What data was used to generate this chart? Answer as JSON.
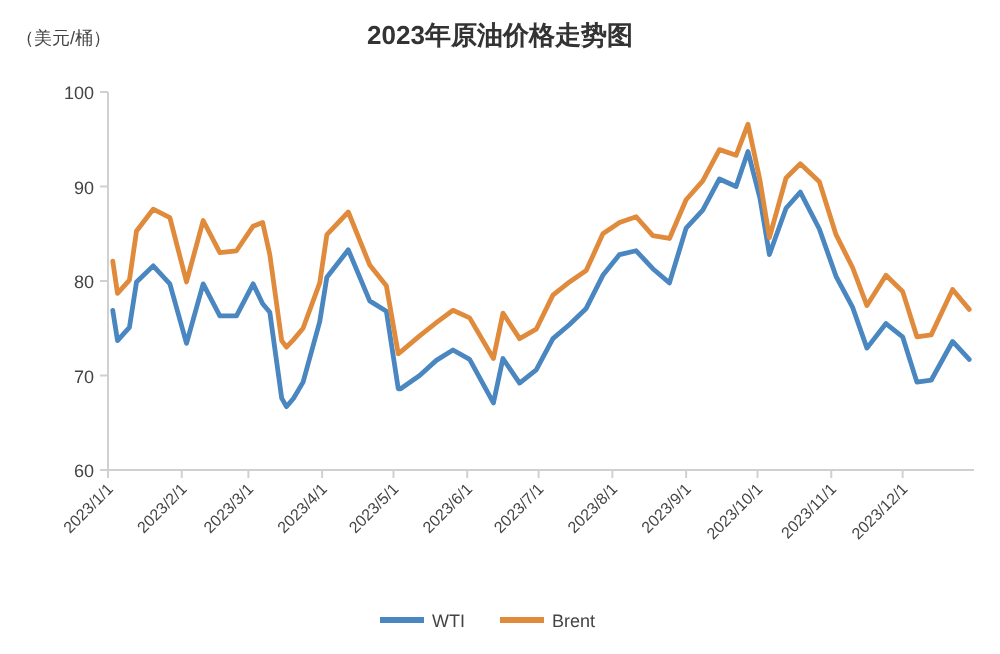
{
  "chart_data": {
    "type": "line",
    "title": "2023年原油价格走势图",
    "ylabel": "（美元/桶）",
    "x": [
      "2023-01-03",
      "2023-01-05",
      "2023-01-10",
      "2023-01-13",
      "2023-01-20",
      "2023-01-27",
      "2023-02-03",
      "2023-02-10",
      "2023-02-17",
      "2023-02-24",
      "2023-03-03",
      "2023-03-07",
      "2023-03-10",
      "2023-03-15",
      "2023-03-17",
      "2023-03-20",
      "2023-03-24",
      "2023-03-31",
      "2023-04-03",
      "2023-04-12",
      "2023-04-21",
      "2023-04-28",
      "2023-05-03",
      "2023-05-04",
      "2023-05-12",
      "2023-05-19",
      "2023-05-26",
      "2023-06-02",
      "2023-06-12",
      "2023-06-16",
      "2023-06-23",
      "2023-06-30",
      "2023-07-07",
      "2023-07-14",
      "2023-07-21",
      "2023-07-28",
      "2023-08-04",
      "2023-08-11",
      "2023-08-18",
      "2023-08-25",
      "2023-09-01",
      "2023-09-08",
      "2023-09-15",
      "2023-09-22",
      "2023-09-27",
      "2023-10-02",
      "2023-10-06",
      "2023-10-13",
      "2023-10-19",
      "2023-10-27",
      "2023-11-03",
      "2023-11-10",
      "2023-11-16",
      "2023-11-24",
      "2023-12-01",
      "2023-12-07",
      "2023-12-13",
      "2023-12-22",
      "2023-12-29"
    ],
    "series": [
      {
        "name": "WTI",
        "color": "#4a86c0",
        "values": [
          76.9,
          73.7,
          75.1,
          79.9,
          81.6,
          79.7,
          73.4,
          79.7,
          76.3,
          76.3,
          79.7,
          77.6,
          76.7,
          67.6,
          66.7,
          67.6,
          69.3,
          75.7,
          80.4,
          83.3,
          77.9,
          76.8,
          68.6,
          68.6,
          70.0,
          71.6,
          72.7,
          71.7,
          67.1,
          71.8,
          69.2,
          70.6,
          73.9,
          75.4,
          77.1,
          80.6,
          82.8,
          83.2,
          81.3,
          79.8,
          85.6,
          87.5,
          90.8,
          90.0,
          93.7,
          88.8,
          82.8,
          87.7,
          89.4,
          85.5,
          80.5,
          77.2,
          72.9,
          75.5,
          74.1,
          69.3,
          69.5,
          73.6,
          71.7
        ]
      },
      {
        "name": "Brent",
        "color": "#e08a3c",
        "values": [
          82.1,
          78.7,
          80.1,
          85.3,
          87.6,
          86.7,
          79.9,
          86.4,
          83.0,
          83.2,
          85.8,
          86.2,
          82.8,
          73.7,
          73.0,
          73.8,
          75.0,
          79.8,
          84.9,
          87.3,
          81.7,
          79.5,
          72.3,
          72.5,
          74.2,
          75.6,
          76.9,
          76.1,
          71.8,
          76.6,
          73.9,
          74.9,
          78.5,
          79.9,
          81.1,
          85.0,
          86.2,
          86.8,
          84.8,
          84.5,
          88.6,
          90.6,
          93.9,
          93.3,
          96.6,
          90.7,
          84.6,
          90.9,
          92.4,
          90.5,
          84.9,
          81.4,
          77.4,
          80.6,
          78.9,
          74.1,
          74.3,
          79.1,
          77.0
        ]
      }
    ],
    "xlim": [
      "2023-01-01",
      "2023-12-31"
    ],
    "ylim": [
      60,
      100
    ],
    "yticks": [
      60,
      70,
      80,
      90,
      100
    ],
    "xticks": [
      {
        "value": "2023-01-01",
        "label": "2023/1/1"
      },
      {
        "value": "2023-02-01",
        "label": "2023/2/1"
      },
      {
        "value": "2023-03-01",
        "label": "2023/3/1"
      },
      {
        "value": "2023-04-01",
        "label": "2023/4/1"
      },
      {
        "value": "2023-05-01",
        "label": "2023/5/1"
      },
      {
        "value": "2023-06-01",
        "label": "2023/6/1"
      },
      {
        "value": "2023-07-01",
        "label": "2023/7/1"
      },
      {
        "value": "2023-08-01",
        "label": "2023/8/1"
      },
      {
        "value": "2023-09-01",
        "label": "2023/9/1"
      },
      {
        "value": "2023-10-01",
        "label": "2023/10/1"
      },
      {
        "value": "2023-11-01",
        "label": "2023/11/1"
      },
      {
        "value": "2023-12-01",
        "label": "2023/12/1"
      }
    ],
    "legend": "bottom"
  }
}
